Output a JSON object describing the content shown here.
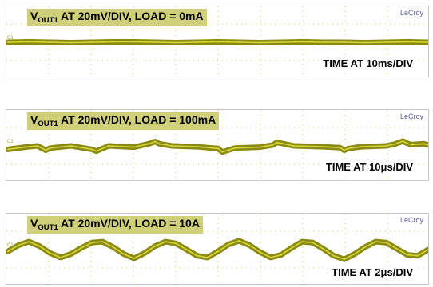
{
  "colors": {
    "trace": "#8a8a10",
    "trace_core": "#d6d63a",
    "grid": "#cfcf66",
    "title_bg": "#d0d07a",
    "brand": "#5a5aa8"
  },
  "panels": [
    {
      "title_pre": "V",
      "title_sub": "OUT1",
      "title_post": " AT 20mV/DIV, LOAD = 0mA",
      "brand": "LeCroy",
      "time_label": "TIME AT 10ms/DIV",
      "channel_mark": "C1"
    },
    {
      "title_pre": "V",
      "title_sub": "OUT1",
      "title_post": " AT 20mV/DIV, LOAD = 100mA",
      "brand": "LeCroy",
      "time_label": "TIME AT 10μs/DIV",
      "channel_mark": "C1"
    },
    {
      "title_pre": "V",
      "title_sub": "OUT1",
      "title_post": " AT 20mV/DIV, LOAD = 10A",
      "brand": "LeCroy",
      "time_label": "TIME AT 2μs/DIV",
      "channel_mark": "C1"
    }
  ],
  "chart_data": [
    {
      "type": "line",
      "title": "VOUT1 AT 20mV/DIV, LOAD = 0mA",
      "xlabel": "TIME AT 10ms/DIV",
      "ylabel": "",
      "units": {
        "x": "ms",
        "y": "mV"
      },
      "grid": true,
      "xlim": [
        0,
        100
      ],
      "ylim": [
        -80,
        80
      ],
      "series": [
        {
          "x": [
            0,
            5,
            10,
            15,
            20,
            25,
            30,
            35,
            40,
            45,
            50,
            55,
            60,
            65,
            70,
            75,
            80,
            85,
            90,
            95,
            100
          ],
          "y": [
            0,
            1,
            0,
            -1,
            0,
            1,
            1,
            0,
            -1,
            0,
            1,
            0,
            -1,
            0,
            1,
            0,
            0,
            -1,
            0,
            1,
            0
          ]
        }
      ]
    },
    {
      "type": "line",
      "title": "VOUT1 AT 20mV/DIV, LOAD = 100mA",
      "xlabel": "TIME AT 10μs/DIV",
      "ylabel": "",
      "units": {
        "x": "μs",
        "y": "mV"
      },
      "grid": true,
      "xlim": [
        0,
        100
      ],
      "ylim": [
        -80,
        80
      ],
      "series": [
        {
          "x": [
            0,
            4,
            7,
            9,
            10,
            15,
            20,
            21,
            24,
            30,
            34,
            35,
            36,
            39,
            45,
            50,
            51,
            54,
            60,
            63,
            64,
            65,
            68,
            75,
            79,
            80,
            81,
            84,
            90,
            92,
            94,
            95,
            96,
            99,
            100
          ],
          "y": [
            -8,
            -3,
            0,
            -10,
            -5,
            0,
            -8,
            -12,
            0,
            -3,
            6,
            10,
            5,
            0,
            -2,
            -6,
            -14,
            -5,
            -3,
            2,
            8,
            6,
            0,
            -2,
            -4,
            -10,
            -6,
            -2,
            0,
            4,
            11,
            6,
            3,
            5,
            2
          ]
        }
      ]
    },
    {
      "type": "line",
      "title": "VOUT1 AT 20mV/DIV, LOAD = 10A",
      "xlabel": "TIME AT 2μs/DIV",
      "ylabel": "",
      "units": {
        "x": "μs",
        "y": "mV"
      },
      "grid": true,
      "xlim": [
        0,
        20
      ],
      "ylim": [
        -80,
        80
      ],
      "series": [
        {
          "x": [
            0,
            0.5,
            1,
            1.5,
            2,
            2.5,
            3,
            3.5,
            4,
            4.5,
            5,
            5.5,
            6,
            6.5,
            7,
            7.5,
            8,
            8.5,
            9,
            9.5,
            10,
            10.5,
            11,
            11.5,
            12,
            12.5,
            13,
            13.5,
            14,
            14.5,
            15,
            15.5,
            16,
            16.5,
            17,
            17.5,
            18,
            18.5,
            19,
            19.5,
            20
          ],
          "y": [
            -4,
            10,
            18,
            8,
            -8,
            -18,
            -10,
            4,
            16,
            18,
            6,
            -10,
            -20,
            -8,
            8,
            18,
            14,
            0,
            -14,
            -18,
            -4,
            12,
            20,
            10,
            -6,
            -18,
            -12,
            4,
            18,
            16,
            2,
            -14,
            -22,
            -10,
            6,
            18,
            16,
            2,
            -12,
            -14,
            0
          ]
        }
      ]
    }
  ]
}
